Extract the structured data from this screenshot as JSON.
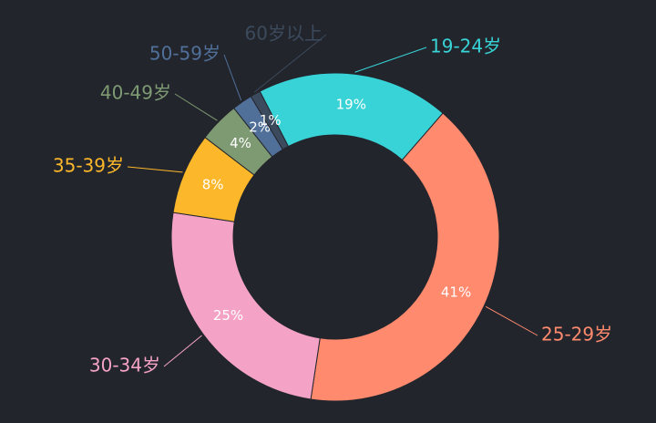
{
  "chart_data": {
    "type": "donut",
    "categories": [
      "19-24岁",
      "25-29岁",
      "30-34岁",
      "35-39岁",
      "40-49岁",
      "50-59岁",
      "60岁以上"
    ],
    "values": [
      19,
      41,
      25,
      8,
      4,
      2,
      1
    ],
    "value_labels": [
      "19%",
      "41%",
      "25%",
      "8%",
      "4%",
      "2%",
      "1%"
    ],
    "colors": [
      "#37d3d6",
      "#ff8a6e",
      "#f4a3c6",
      "#fcb72a",
      "#7e9a72",
      "#50709a",
      "#3b4a5c"
    ]
  }
}
